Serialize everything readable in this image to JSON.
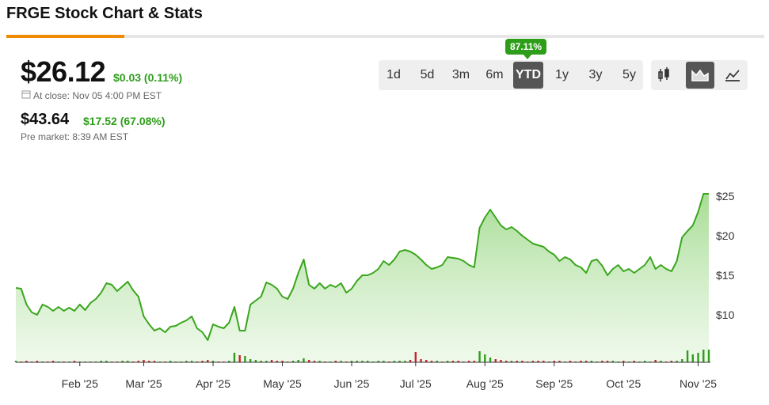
{
  "header": {
    "title": "FRGE Stock Chart & Stats"
  },
  "quote": {
    "price": "$26.12",
    "change": "$0.03 (0.11%)",
    "close_label": "At close: Nov 05 4:00 PM EST",
    "premarket_price": "$43.64",
    "premarket_change": "$17.52 (67.08%)",
    "premarket_label": "Pre market: 8:39 AM EST"
  },
  "ranges": {
    "options": [
      "1d",
      "5d",
      "3m",
      "6m",
      "YTD",
      "1y",
      "3y",
      "5y"
    ],
    "active": 4,
    "badge": "87.11%"
  },
  "chart_data": {
    "type": "area",
    "color": "#3aa61d",
    "up_color": "#2e9e1a",
    "down_color": "#d0202e",
    "categories": [
      null,
      null,
      null,
      null,
      null,
      null,
      null,
      null,
      null,
      null,
      null,
      null,
      "Feb '25",
      null,
      null,
      null,
      null,
      null,
      null,
      null,
      null,
      null,
      null,
      null,
      "Mar '25",
      null,
      null,
      null,
      null,
      null,
      null,
      null,
      null,
      null,
      null,
      null,
      null,
      "Apr '25",
      null,
      null,
      null,
      null,
      null,
      null,
      null,
      null,
      null,
      null,
      null,
      null,
      "May '25",
      null,
      null,
      null,
      null,
      null,
      null,
      null,
      null,
      null,
      null,
      null,
      null,
      "Jun '25",
      null,
      null,
      null,
      null,
      null,
      null,
      null,
      null,
      null,
      null,
      null,
      "Jul '25",
      null,
      null,
      null,
      null,
      null,
      null,
      null,
      null,
      null,
      null,
      null,
      null,
      "Aug '25",
      null,
      null,
      null,
      null,
      null,
      null,
      null,
      null,
      null,
      null,
      null,
      null,
      "Sep '25",
      null,
      null,
      null,
      null,
      null,
      null,
      null,
      null,
      null,
      null,
      null,
      null,
      "Oct '25",
      null,
      null,
      null,
      null,
      null,
      null,
      null,
      null,
      null,
      null,
      null,
      null,
      null,
      "Nov '25",
      null,
      null
    ],
    "values": [
      13.4,
      13.3,
      11.3,
      10.3,
      10.0,
      11.3,
      11.0,
      10.5,
      11.0,
      10.5,
      10.9,
      10.5,
      11.3,
      10.6,
      11.5,
      12.0,
      12.8,
      14.0,
      13.8,
      13.0,
      13.6,
      14.2,
      13.1,
      12.3,
      9.8,
      8.8,
      8.0,
      8.3,
      7.8,
      8.5,
      8.6,
      9.0,
      9.3,
      9.8,
      8.3,
      7.8,
      6.8,
      8.8,
      8.5,
      8.3,
      9.0,
      11.0,
      8.0,
      8.0,
      11.3,
      11.8,
      12.3,
      14.1,
      13.8,
      13.3,
      12.3,
      12.0,
      13.3,
      15.3,
      17.0,
      13.8,
      13.3,
      14.0,
      13.3,
      13.8,
      13.5,
      14.0,
      12.8,
      13.3,
      14.3,
      15.0,
      15.0,
      15.3,
      15.8,
      16.8,
      16.3,
      17.0,
      18.0,
      18.2,
      18.0,
      17.6,
      17.0,
      16.3,
      15.8,
      16.0,
      16.3,
      17.3,
      17.2,
      17.1,
      16.8,
      16.3,
      16.0,
      21.0,
      22.3,
      23.3,
      22.3,
      21.3,
      20.8,
      21.1,
      20.6,
      20.0,
      19.5,
      19.0,
      18.8,
      18.6,
      18.0,
      17.6,
      16.8,
      17.3,
      17.0,
      16.3,
      16.0,
      15.3,
      16.8,
      17.0,
      16.2,
      15.0,
      15.8,
      16.3,
      15.5,
      15.8,
      15.3,
      15.8,
      16.3,
      17.3,
      15.8,
      16.3,
      15.8,
      15.5,
      16.8,
      19.8,
      20.6,
      21.3,
      23.0,
      25.3,
      25.3
    ],
    "volume": [
      2,
      1,
      2,
      1,
      2,
      1,
      1,
      2,
      1,
      1,
      1,
      2,
      1,
      1,
      1,
      1,
      2,
      2,
      1,
      1,
      2,
      2,
      1,
      2,
      3,
      2,
      2,
      1,
      1,
      2,
      1,
      1,
      2,
      2,
      1,
      2,
      3,
      2,
      1,
      1,
      2,
      12,
      9,
      8,
      4,
      3,
      2,
      2,
      3,
      2,
      2,
      1,
      2,
      3,
      5,
      3,
      2,
      2,
      1,
      1,
      2,
      2,
      1,
      2,
      2,
      2,
      2,
      1,
      2,
      2,
      1,
      2,
      2,
      2,
      3,
      13,
      4,
      3,
      2,
      2,
      1,
      2,
      2,
      2,
      1,
      2,
      2,
      14,
      10,
      6,
      4,
      3,
      2,
      2,
      2,
      2,
      1,
      2,
      2,
      2,
      1,
      2,
      2,
      1,
      2,
      1,
      2,
      2,
      2,
      1,
      2,
      2,
      2,
      1,
      2,
      1,
      2,
      1,
      2,
      1,
      3,
      2,
      1,
      2,
      2,
      4,
      15,
      10,
      12,
      16,
      16
    ],
    "ylim": [
      4,
      28
    ],
    "yticks": [
      {
        "value": 10,
        "label": "$10"
      },
      {
        "value": 15,
        "label": "$15"
      },
      {
        "value": 20,
        "label": "$20"
      },
      {
        "value": 25,
        "label": "$25"
      }
    ]
  }
}
